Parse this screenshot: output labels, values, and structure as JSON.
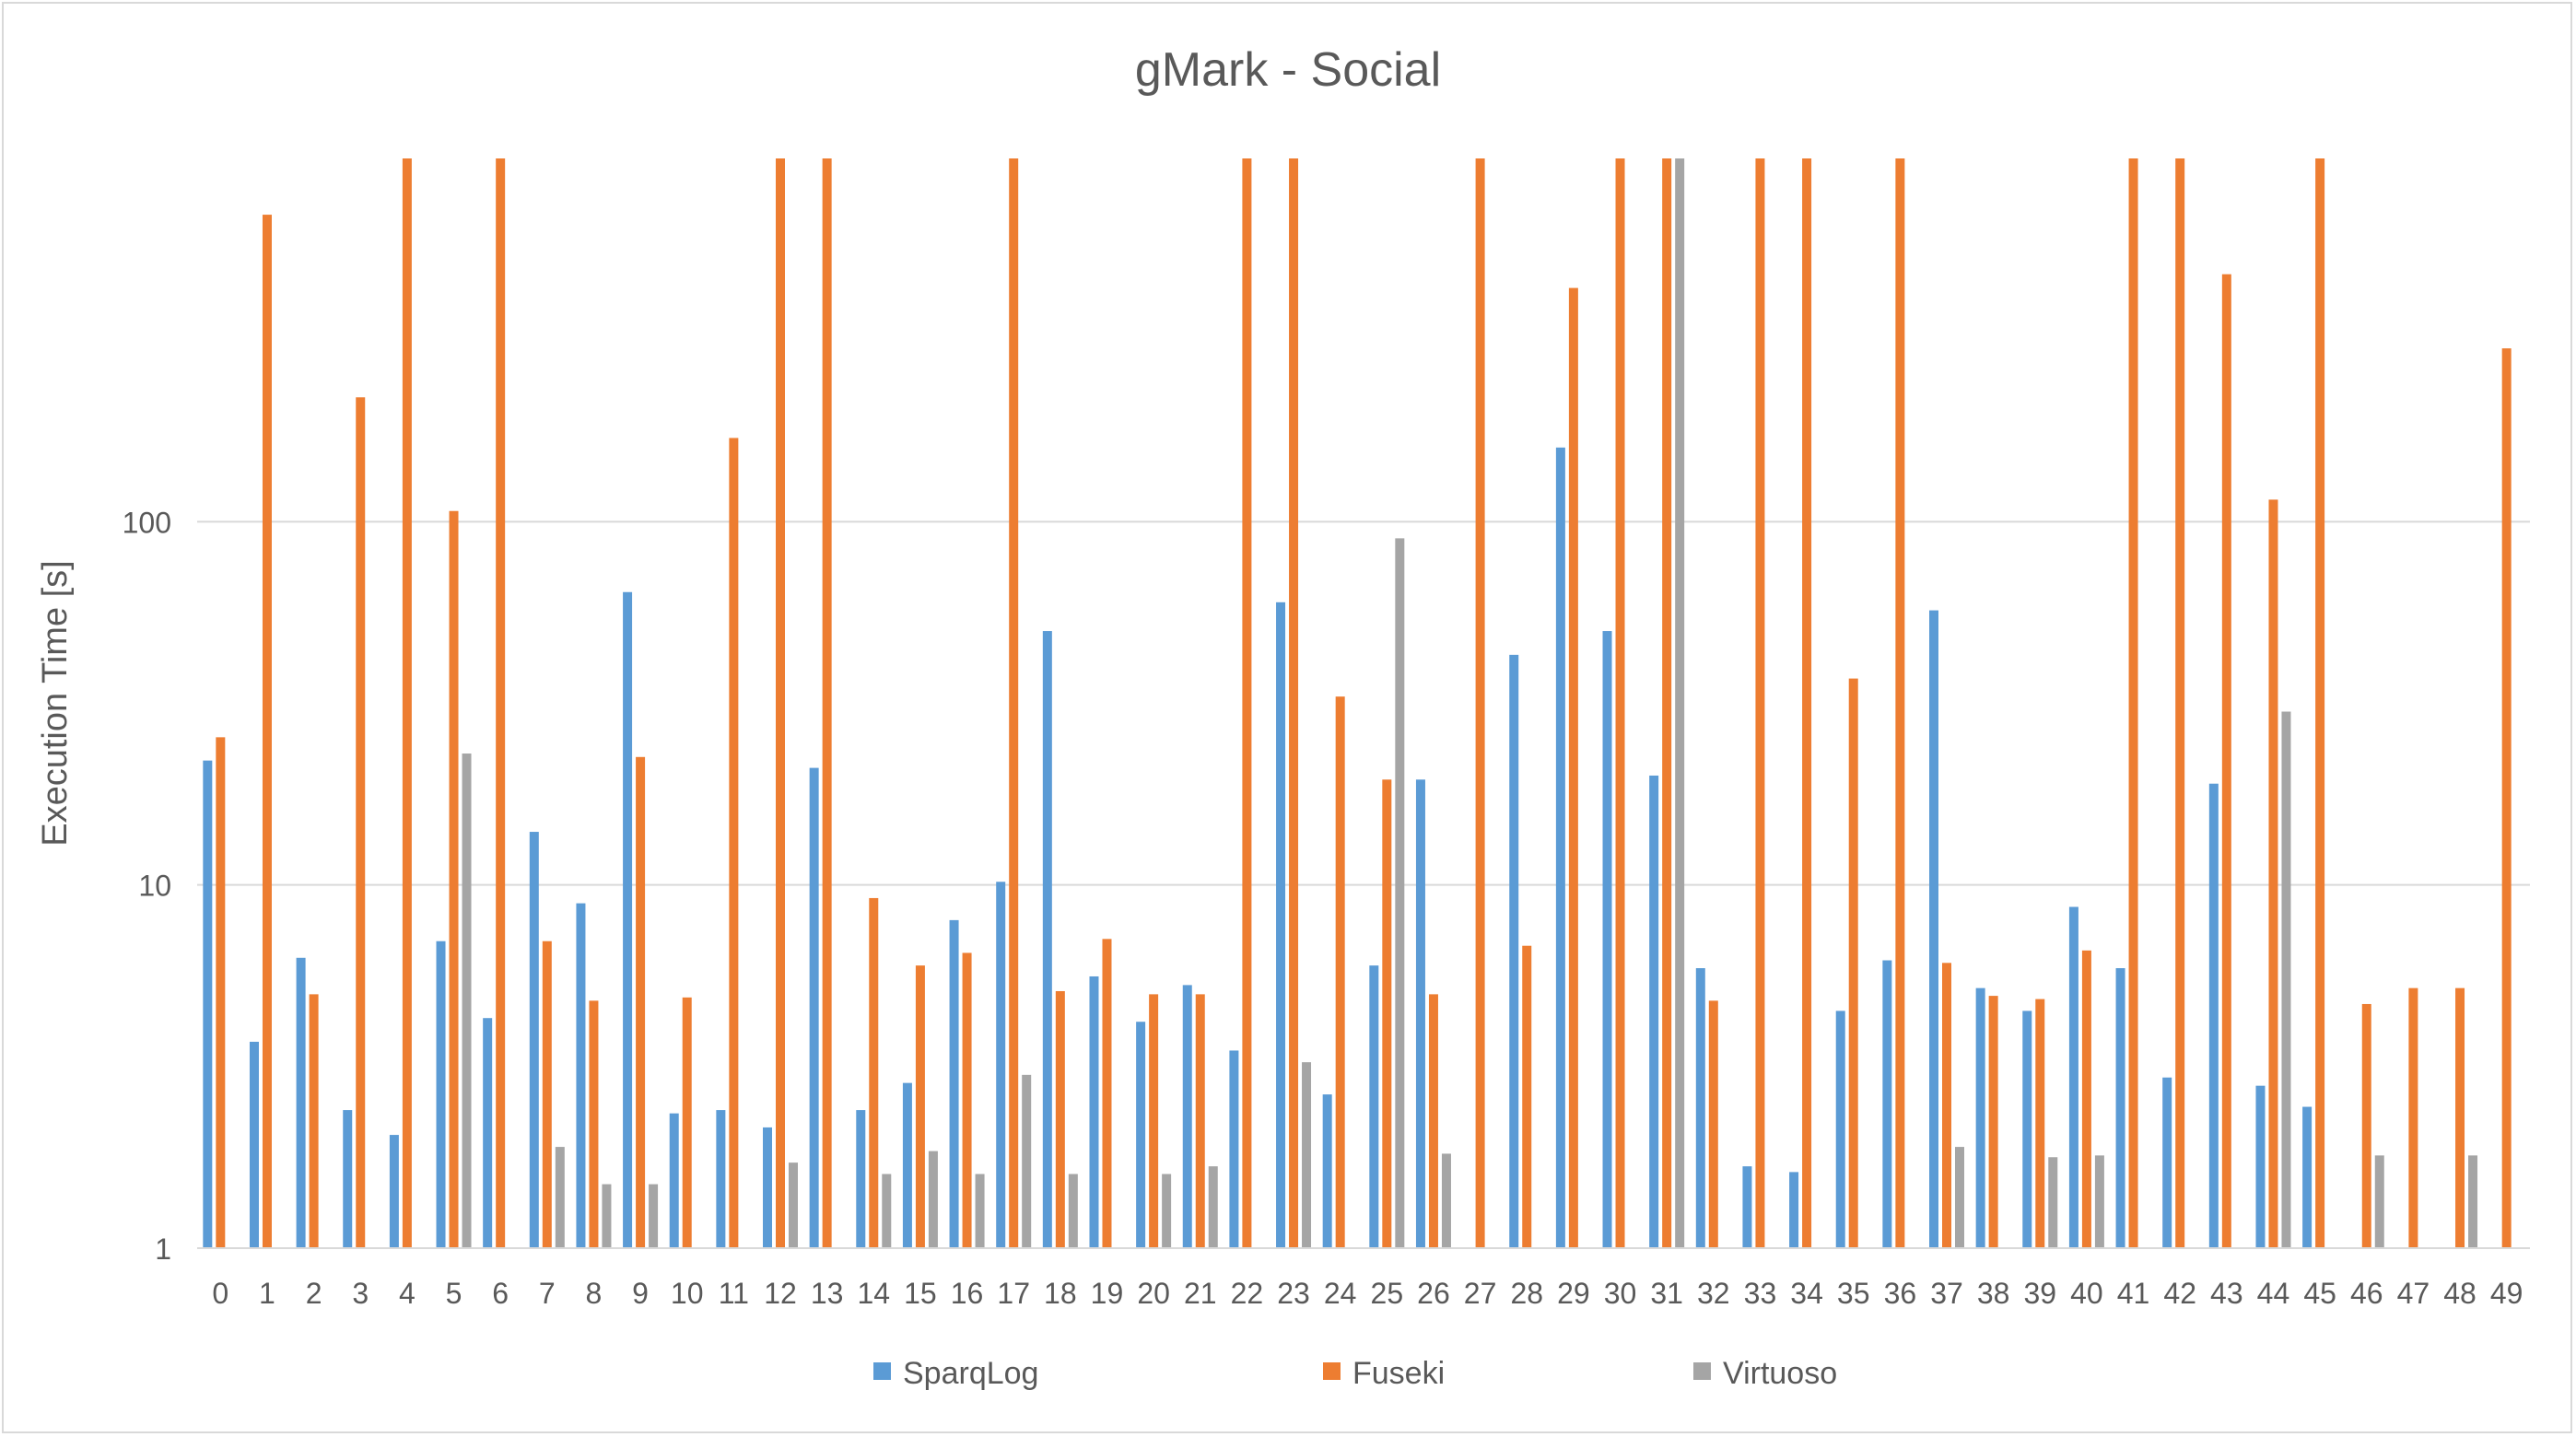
{
  "chart_data": {
    "type": "bar",
    "title": "gMark - Social",
    "xlabel": "",
    "ylabel": "Execution Time [s]",
    "yscale": "log",
    "ylim": [
      1,
      1000
    ],
    "yticks": [
      1,
      10,
      100
    ],
    "grid": true,
    "legend_position": "bottom",
    "categories": [
      "0",
      "1",
      "2",
      "3",
      "4",
      "5",
      "6",
      "7",
      "8",
      "9",
      "10",
      "11",
      "12",
      "13",
      "14",
      "15",
      "16",
      "17",
      "18",
      "19",
      "20",
      "21",
      "22",
      "23",
      "24",
      "25",
      "26",
      "27",
      "28",
      "29",
      "30",
      "31",
      "32",
      "33",
      "34",
      "35",
      "36",
      "37",
      "38",
      "39",
      "40",
      "41",
      "42",
      "43",
      "44",
      "45",
      "46",
      "47",
      "48",
      "49"
    ],
    "series": [
      {
        "name": "SparqLog",
        "color": "#5b9bd5",
        "values": [
          22,
          3.7,
          6.3,
          2.4,
          2.05,
          7,
          4.3,
          14,
          8.9,
          64,
          2.35,
          2.4,
          2.15,
          21,
          2.4,
          2.85,
          8,
          10.2,
          50,
          5.6,
          4.2,
          5.3,
          3.5,
          60,
          2.65,
          6,
          19.5,
          null,
          43,
          160,
          50,
          20,
          5.9,
          1.68,
          1.62,
          4.5,
          6.2,
          57,
          5.2,
          4.5,
          8.7,
          5.9,
          2.95,
          19,
          2.8,
          2.45,
          null,
          null,
          null,
          null
        ]
      },
      {
        "name": "Fuseki",
        "color": "#ed7d31",
        "values": [
          25.5,
          700,
          5,
          220,
          1000,
          107,
          1000,
          7,
          4.8,
          22.5,
          4.9,
          170,
          1000,
          1000,
          9.2,
          6,
          6.5,
          1000,
          5.1,
          7.1,
          5,
          5,
          1000,
          1000,
          33,
          19.5,
          5,
          1000,
          6.8,
          440,
          1000,
          1000,
          4.8,
          1000,
          1000,
          37,
          1000,
          6.1,
          4.95,
          4.85,
          6.6,
          1000,
          1000,
          480,
          115,
          1000,
          4.7,
          5.2,
          5.2,
          300
        ]
      },
      {
        "name": "Virtuoso",
        "color": "#a5a5a5",
        "values": [
          null,
          null,
          null,
          null,
          null,
          23,
          null,
          1.9,
          1.5,
          1.5,
          null,
          null,
          1.72,
          null,
          1.6,
          1.85,
          1.6,
          3,
          1.6,
          null,
          1.6,
          1.68,
          null,
          3.25,
          null,
          90,
          1.82,
          null,
          null,
          null,
          null,
          1000,
          null,
          null,
          null,
          null,
          null,
          1.9,
          null,
          1.78,
          1.8,
          null,
          null,
          null,
          30,
          null,
          1.8,
          null,
          1.8,
          null
        ]
      }
    ]
  }
}
